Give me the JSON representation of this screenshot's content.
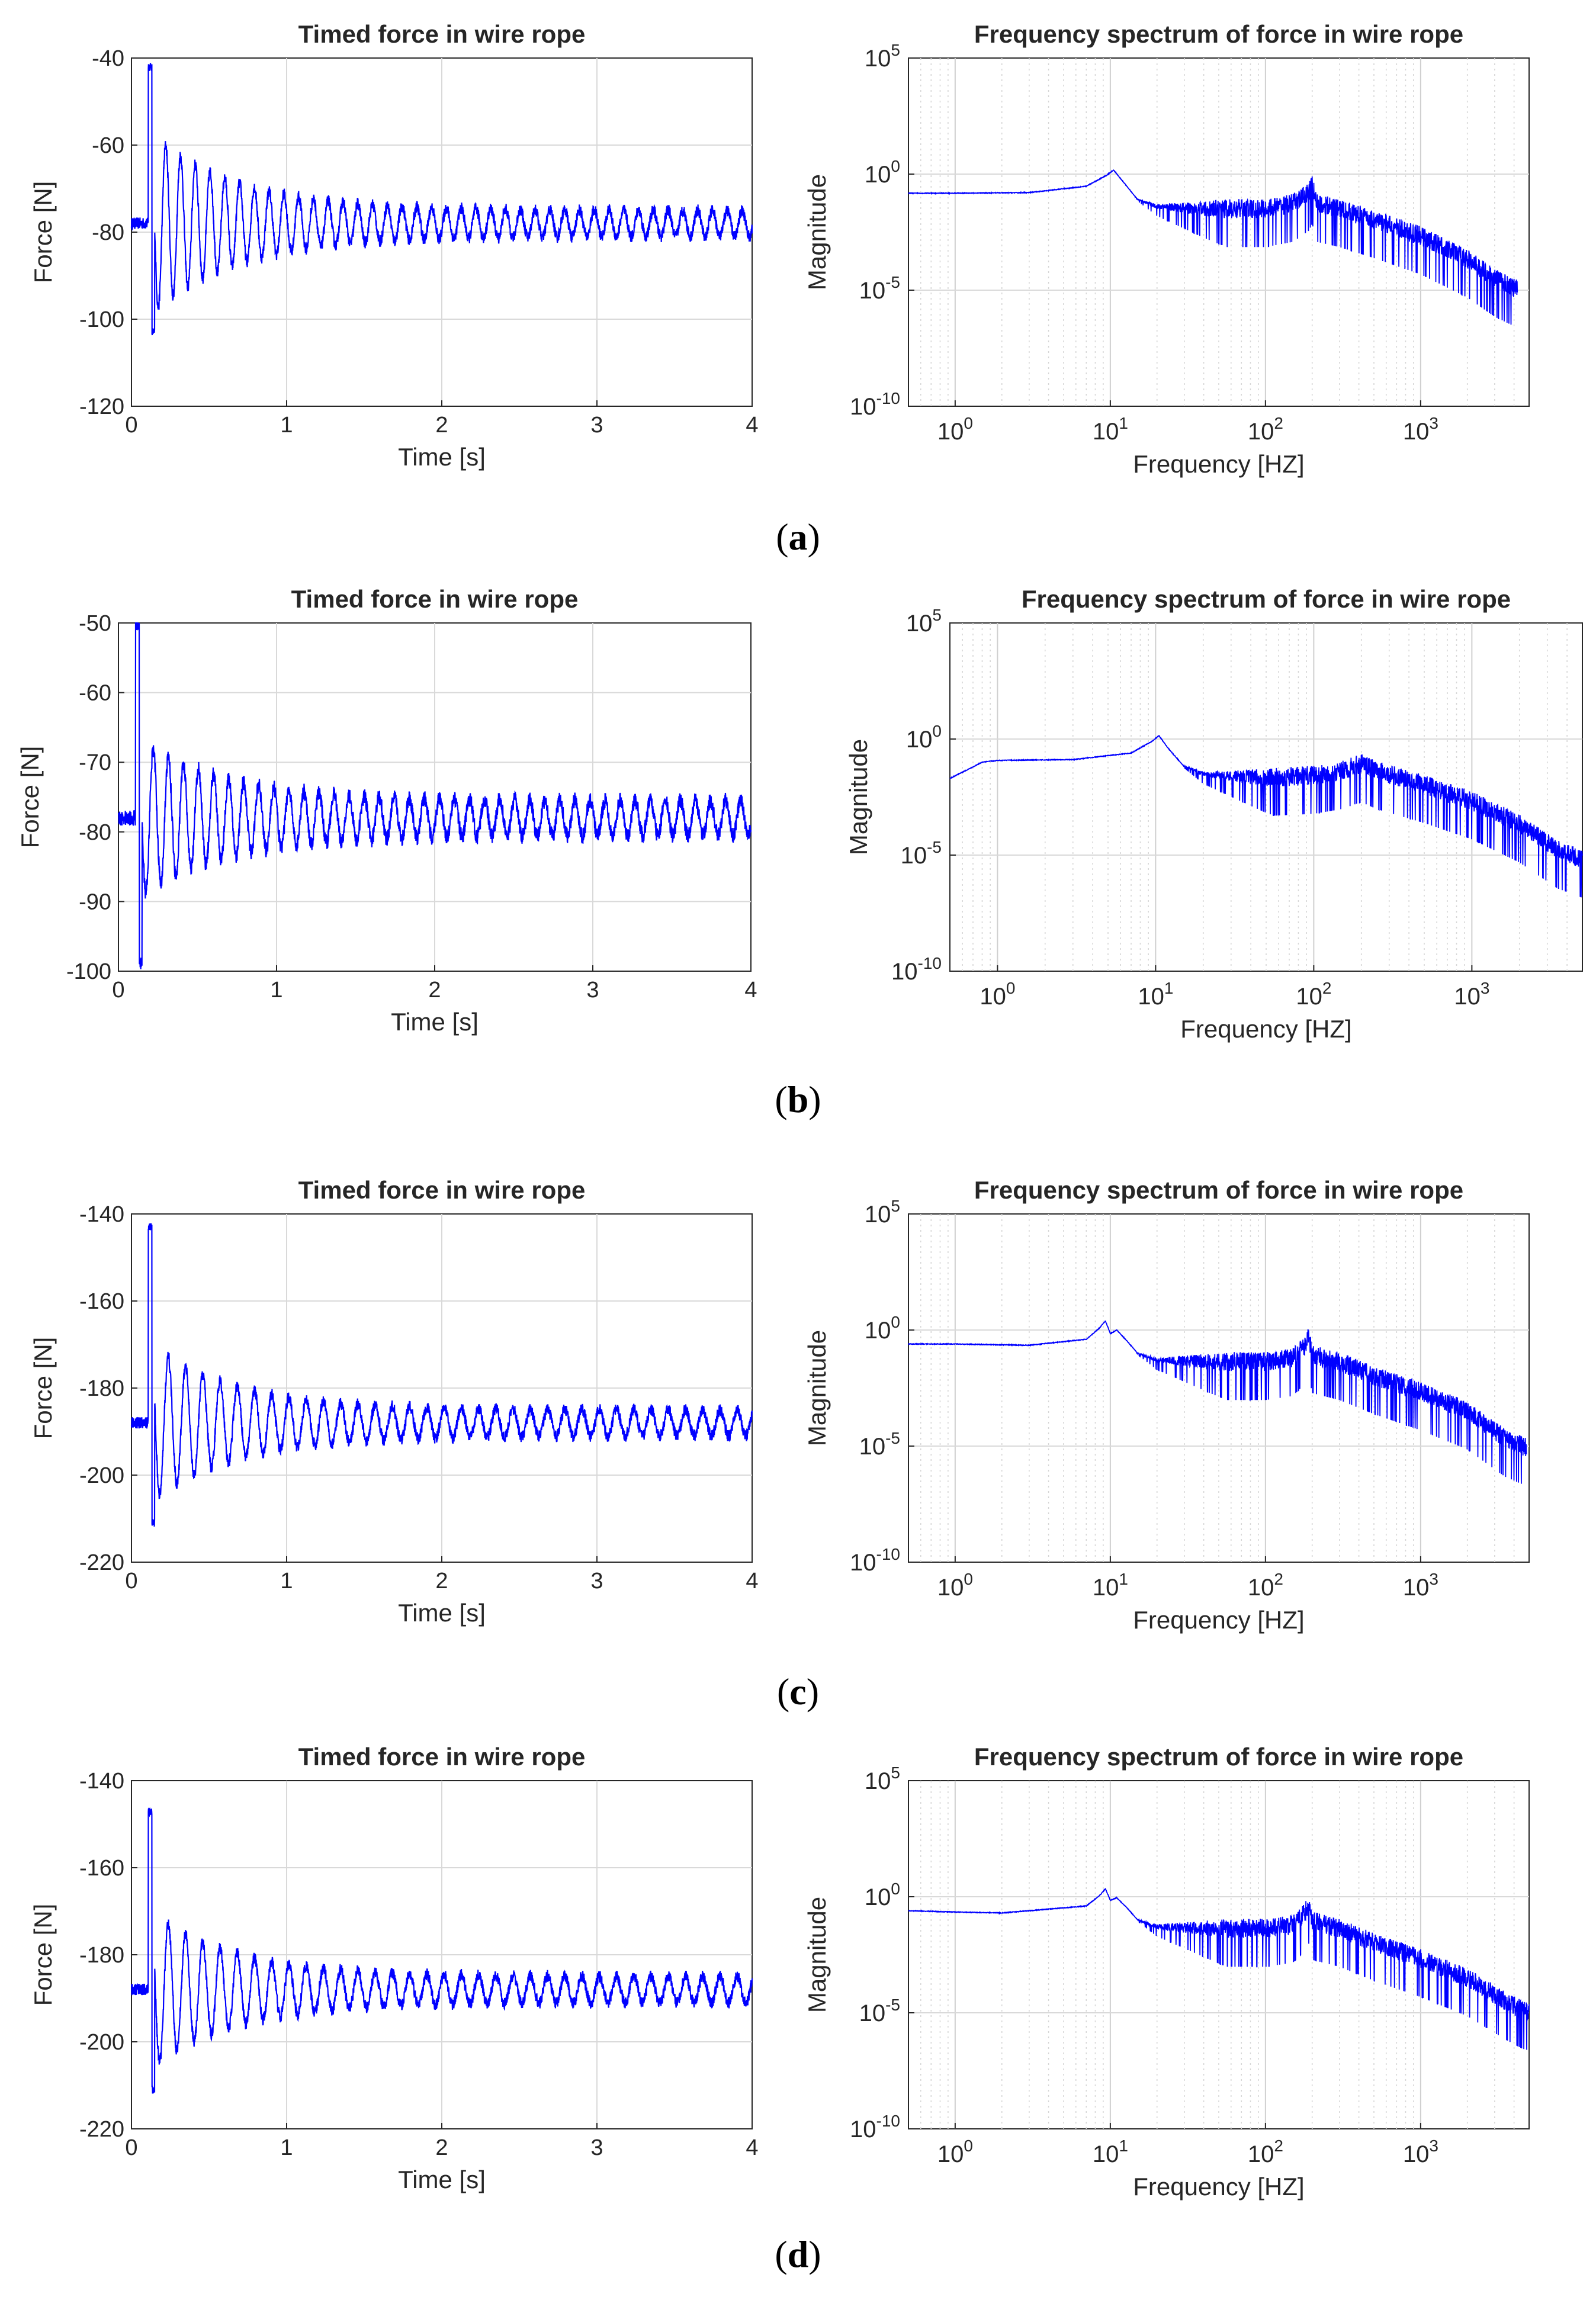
{
  "figure": {
    "captions": [
      "(a)",
      "(b)",
      "(c)",
      "(d)"
    ],
    "panel_letters": [
      "a",
      "b",
      "c",
      "d"
    ]
  },
  "style": {
    "line_color": "#0000FF",
    "grid_color": "#d9d9d9",
    "axis_color": "#262626"
  },
  "chart_data": [
    {
      "panel": "a",
      "type": "line",
      "title": "Timed force in wire rope",
      "xlabel": "Time [s]",
      "ylabel": "Force [N]",
      "xlim": [
        0,
        4
      ],
      "ylim": [
        -120,
        -40
      ],
      "xticks": [
        0,
        1,
        2,
        3,
        4
      ],
      "yticks": [
        -120,
        -100,
        -80,
        -60,
        -40
      ],
      "grid": true,
      "series": [
        {
          "name": "force",
          "mean": -78,
          "peak_max": -42,
          "peak_min": -103,
          "impulse_time": 0.12,
          "initial_amplitude": 18,
          "settled_amplitude": 3,
          "oscillation_frequency_hz": 10.5
        }
      ]
    },
    {
      "panel": "a",
      "type": "line",
      "scale": "loglog",
      "title": "Frequency spectrum of force in wire rope",
      "xlabel": "Frequency [HZ]",
      "ylabel": "Magnitude",
      "xlim": [
        0.5,
        5000
      ],
      "ylim": [
        1e-10,
        100000.0
      ],
      "xticks": [
        1,
        10,
        100,
        1000
      ],
      "xtick_labels": [
        "10^0",
        "10^1",
        "10^2",
        "10^3"
      ],
      "yticks": [
        1e-10,
        1e-05,
        1,
        100000.0
      ],
      "ytick_labels": [
        "10^-10",
        "10^-5",
        "10^0",
        "10^5"
      ],
      "grid": true,
      "series": [
        {
          "name": "magnitude",
          "points": [
            [
              0.5,
              0.15
            ],
            [
              1,
              0.15
            ],
            [
              3,
              0.16
            ],
            [
              7,
              0.3
            ],
            [
              9.5,
              0.9
            ],
            [
              10.5,
              1.5
            ],
            [
              12,
              0.5
            ],
            [
              15,
              0.08
            ],
            [
              20,
              0.04
            ],
            [
              40,
              0.03
            ],
            [
              100,
              0.03
            ],
            [
              150,
              0.05
            ],
            [
              190,
              0.15
            ],
            [
              200,
              0.3
            ],
            [
              215,
              0.05
            ],
            [
              300,
              0.03
            ],
            [
              500,
              0.01
            ],
            [
              1000,
              0.002
            ],
            [
              2000,
              0.0002
            ],
            [
              3000,
              3e-05
            ],
            [
              4200,
              1e-05
            ]
          ],
          "noise_decades": 0.9
        }
      ]
    },
    {
      "panel": "b",
      "type": "line",
      "title": "Timed force in wire rope",
      "xlabel": "Time [s]",
      "ylabel": "Force [N]",
      "xlim": [
        0,
        4
      ],
      "ylim": [
        -100,
        -50
      ],
      "xticks": [
        0,
        1,
        2,
        3,
        4
      ],
      "yticks": [
        -100,
        -90,
        -80,
        -70,
        -60,
        -50
      ],
      "grid": true,
      "series": [
        {
          "name": "force",
          "mean": -78,
          "peak_max": -50,
          "peak_min": -99,
          "impulse_time": 0.12,
          "initial_amplitude": 9,
          "settled_amplitude": 2.5,
          "oscillation_frequency_hz": 10.5
        }
      ]
    },
    {
      "panel": "b",
      "type": "line",
      "scale": "loglog",
      "title": "Frequency spectrum of force in wire rope",
      "xlabel": "Frequency [HZ]",
      "ylabel": "Magnitude",
      "xlim": [
        0.5,
        5000
      ],
      "ylim": [
        1e-10,
        100000.0
      ],
      "xticks": [
        1,
        10,
        100,
        1000
      ],
      "xtick_labels": [
        "10^0",
        "10^1",
        "10^2",
        "10^3"
      ],
      "yticks": [
        1e-10,
        1e-05,
        1,
        100000.0
      ],
      "ytick_labels": [
        "10^-10",
        "10^-5",
        "10^0",
        "10^5"
      ],
      "grid": true,
      "series": [
        {
          "name": "magnitude",
          "points": [
            [
              0.5,
              0.02
            ],
            [
              0.8,
              0.1
            ],
            [
              1,
              0.12
            ],
            [
              3,
              0.13
            ],
            [
              7,
              0.25
            ],
            [
              9.5,
              0.8
            ],
            [
              10.5,
              1.4
            ],
            [
              12,
              0.4
            ],
            [
              15,
              0.07
            ],
            [
              20,
              0.03
            ],
            [
              50,
              0.02
            ],
            [
              100,
              0.025
            ],
            [
              150,
              0.04
            ],
            [
              200,
              0.08
            ],
            [
              250,
              0.04
            ],
            [
              500,
              0.01
            ],
            [
              1000,
              0.002
            ],
            [
              2000,
              0.0002
            ],
            [
              3500,
              1.5e-05
            ],
            [
              5000,
              6e-06
            ]
          ],
          "noise_decades": 0.9
        }
      ]
    },
    {
      "panel": "c",
      "type": "line",
      "title": "Timed force in wire rope",
      "xlabel": "Time [s]",
      "ylabel": "Force [N]",
      "xlim": [
        0,
        4
      ],
      "ylim": [
        -220,
        -140
      ],
      "xticks": [
        0,
        1,
        2,
        3,
        4
      ],
      "yticks": [
        -220,
        -200,
        -180,
        -160,
        -140
      ],
      "grid": true,
      "series": [
        {
          "name": "force",
          "mean": -188,
          "peak_max": -143,
          "peak_min": -211,
          "impulse_time": 0.12,
          "initial_amplitude": 15,
          "settled_amplitude": 3,
          "oscillation_frequency_hz": 9
        }
      ]
    },
    {
      "panel": "c",
      "type": "line",
      "scale": "loglog",
      "title": "Frequency spectrum of force in wire rope",
      "xlabel": "Frequency [HZ]",
      "ylabel": "Magnitude",
      "xlim": [
        0.5,
        5000
      ],
      "ylim": [
        1e-10,
        100000.0
      ],
      "xticks": [
        1,
        10,
        100,
        1000
      ],
      "xtick_labels": [
        "10^0",
        "10^1",
        "10^2",
        "10^3"
      ],
      "yticks": [
        1e-10,
        1e-05,
        1,
        100000.0
      ],
      "ytick_labels": [
        "10^-10",
        "10^-5",
        "10^0",
        "10^5"
      ],
      "grid": true,
      "series": [
        {
          "name": "magnitude",
          "points": [
            [
              0.5,
              0.25
            ],
            [
              1,
              0.25
            ],
            [
              3,
              0.22
            ],
            [
              7,
              0.4
            ],
            [
              8.5,
              1.2
            ],
            [
              9.3,
              2.5
            ],
            [
              10,
              0.7
            ],
            [
              11,
              1
            ],
            [
              13,
              0.3
            ],
            [
              15,
              0.1
            ],
            [
              20,
              0.05
            ],
            [
              50,
              0.04
            ],
            [
              100,
              0.04
            ],
            [
              150,
              0.06
            ],
            [
              180,
              0.2
            ],
            [
              190,
              0.5
            ],
            [
              200,
              0.08
            ],
            [
              300,
              0.04
            ],
            [
              500,
              0.01
            ],
            [
              1000,
              0.002
            ],
            [
              2000,
              0.0003
            ],
            [
              3500,
              2e-05
            ],
            [
              4800,
              8e-06
            ]
          ],
          "noise_decades": 0.9
        }
      ]
    },
    {
      "panel": "d",
      "type": "line",
      "title": "Timed force in wire rope",
      "xlabel": "Time [s]",
      "ylabel": "Force [N]",
      "xlim": [
        0,
        4
      ],
      "ylim": [
        -220,
        -140
      ],
      "xticks": [
        0,
        1,
        2,
        3,
        4
      ],
      "yticks": [
        -220,
        -200,
        -180,
        -160,
        -140
      ],
      "grid": true,
      "series": [
        {
          "name": "force",
          "mean": -188,
          "peak_max": -147,
          "peak_min": -211,
          "impulse_time": 0.12,
          "initial_amplitude": 15,
          "settled_amplitude": 3,
          "oscillation_frequency_hz": 9
        }
      ]
    },
    {
      "panel": "d",
      "type": "line",
      "scale": "loglog",
      "title": "Frequency spectrum of force in wire rope",
      "xlabel": "Frequency [HZ]",
      "ylabel": "Magnitude",
      "xlim": [
        0.5,
        5000
      ],
      "ylim": [
        1e-10,
        100000.0
      ],
      "xticks": [
        1,
        10,
        100,
        1000
      ],
      "xtick_labels": [
        "10^0",
        "10^1",
        "10^2",
        "10^3"
      ],
      "yticks": [
        1e-10,
        1e-05,
        1,
        100000.0
      ],
      "ytick_labels": [
        "10^-10",
        "10^-5",
        "10^0",
        "10^5"
      ],
      "grid": true,
      "series": [
        {
          "name": "magnitude",
          "points": [
            [
              0.5,
              0.25
            ],
            [
              1,
              0.22
            ],
            [
              2,
              0.2
            ],
            [
              3,
              0.25
            ],
            [
              7,
              0.4
            ],
            [
              8.5,
              1.1
            ],
            [
              9.3,
              2.2
            ],
            [
              10,
              0.7
            ],
            [
              11,
              0.9
            ],
            [
              13,
              0.3
            ],
            [
              15,
              0.1
            ],
            [
              20,
              0.05
            ],
            [
              50,
              0.04
            ],
            [
              100,
              0.04
            ],
            [
              150,
              0.06
            ],
            [
              180,
              0.2
            ],
            [
              190,
              0.4
            ],
            [
              200,
              0.08
            ],
            [
              300,
              0.04
            ],
            [
              500,
              0.01
            ],
            [
              1000,
              0.002
            ],
            [
              2000,
              0.0003
            ],
            [
              3500,
              3e-05
            ],
            [
              4500,
              1.2e-05
            ],
            [
              5000,
              1e-05
            ]
          ],
          "noise_decades": 0.9
        }
      ]
    }
  ]
}
